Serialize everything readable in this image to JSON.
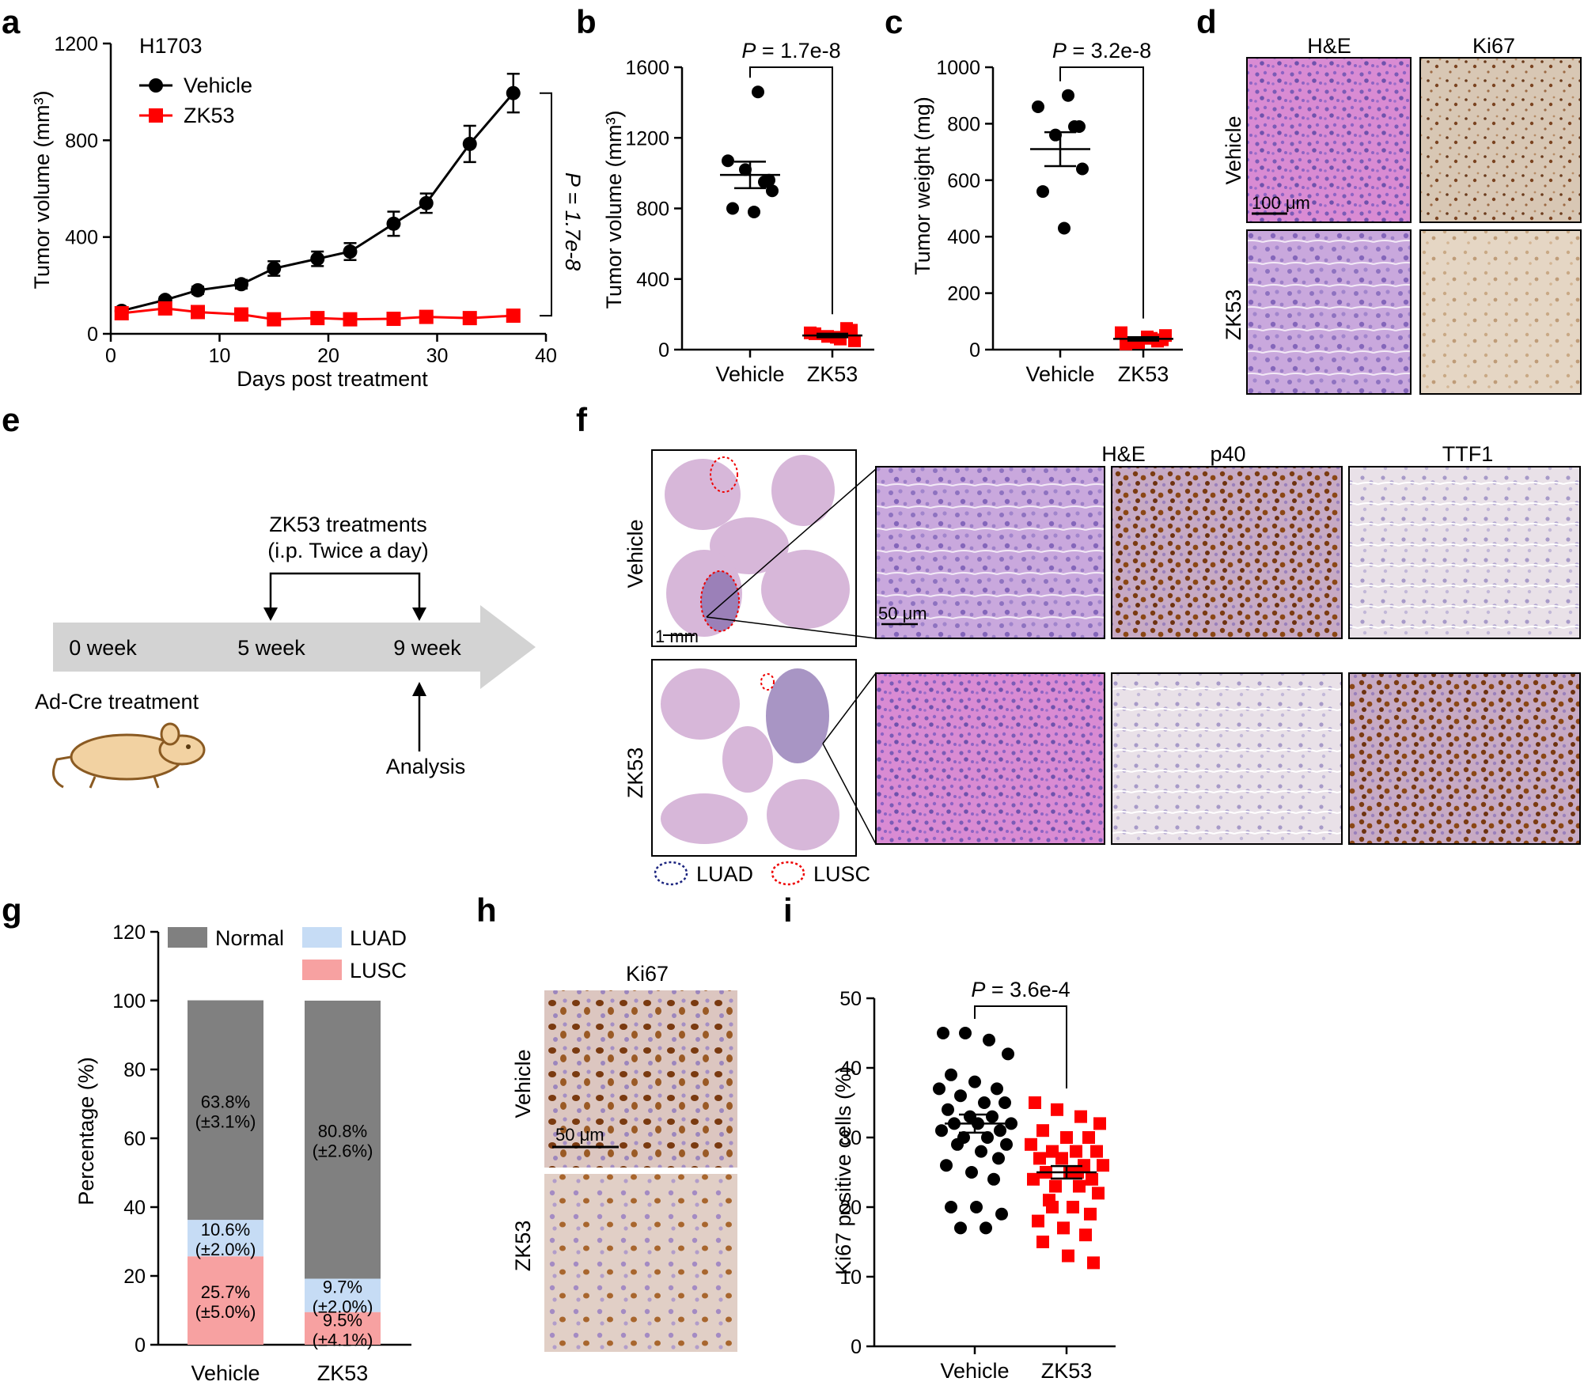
{
  "colors": {
    "vehicle": "#000000",
    "zk53": "#ff0000",
    "normal": "#808080",
    "luad": "#c6dcf5",
    "lusc": "#f7a1a1",
    "he": "#d77ad0",
    "ki67_bg": "#d4c3ad",
    "ki67_dot": "#7a4320",
    "tissue_bg": "#ececec"
  },
  "panel_labels": [
    "a",
    "b",
    "c",
    "d",
    "e",
    "f",
    "g",
    "h",
    "i"
  ],
  "groups": {
    "vehicle": "Vehicle",
    "zk53": "ZK53"
  },
  "stains": {
    "he": "H&E",
    "ki67": "Ki67",
    "p40": "p40",
    "ttf1": "TTF1"
  },
  "scale_bars": {
    "d": "100 μm",
    "f_whole": "1 mm",
    "f_zoom": "50 μm",
    "h": "50 μm"
  },
  "icons": [
    "mouse-icon",
    "timeline-arrow-icon"
  ],
  "schema_e": {
    "weeks": [
      "0 week",
      "5 week",
      "9 week"
    ],
    "treatment_line1": "ZK53 treatments",
    "treatment_line2": "(i.p. Twice a day)",
    "ad_cre": "Ad-Cre treatment",
    "analysis": "Analysis"
  },
  "legend_f": {
    "luad": "LUAD",
    "lusc": "LUSC"
  },
  "chart_data": [
    {
      "id": "a",
      "type": "line",
      "title": "H1703",
      "xlabel": "Days post treatment",
      "ylabel": "Tumor volume (mm³)",
      "xlim": [
        0,
        40
      ],
      "ylim": [
        0,
        1200
      ],
      "xticks": [
        0,
        10,
        20,
        30,
        40
      ],
      "yticks": [
        0,
        400,
        800,
        1200
      ],
      "x": [
        1,
        5,
        8,
        12,
        15,
        19,
        22,
        26,
        29,
        33,
        37
      ],
      "series": [
        {
          "name": "Vehicle",
          "values": [
            95,
            140,
            180,
            205,
            270,
            310,
            340,
            455,
            540,
            785,
            995
          ],
          "errors": [
            8,
            12,
            15,
            18,
            30,
            30,
            35,
            50,
            40,
            75,
            80
          ]
        },
        {
          "name": "ZK53",
          "values": [
            85,
            105,
            90,
            80,
            60,
            65,
            60,
            62,
            70,
            65,
            75
          ],
          "errors": [
            8,
            10,
            10,
            10,
            8,
            8,
            8,
            8,
            8,
            8,
            10
          ]
        }
      ],
      "annotation": "P = 1.7e-8"
    },
    {
      "id": "b",
      "type": "scatter",
      "ylabel": "Tumor volume (mm³)",
      "categories": [
        "Vehicle",
        "ZK53"
      ],
      "ylim": [
        0,
        1600
      ],
      "yticks": [
        0,
        400,
        800,
        1200,
        1600
      ],
      "series": [
        {
          "name": "Vehicle",
          "values": [
            1460,
            1070,
            950,
            1020,
            900,
            800,
            780,
            960
          ],
          "mean": 990,
          "sem": 75
        },
        {
          "name": "ZK53",
          "values": [
            60,
            95,
            120,
            75,
            50,
            90,
            70,
            110
          ],
          "mean": 80,
          "sem": 10
        }
      ],
      "annotation": "P = 1.7e-8"
    },
    {
      "id": "c",
      "type": "scatter",
      "ylabel": "Tumor weight (mg)",
      "categories": [
        "Vehicle",
        "ZK53"
      ],
      "ylim": [
        0,
        1000
      ],
      "yticks": [
        0,
        200,
        400,
        600,
        800,
        1000
      ],
      "series": [
        {
          "name": "Vehicle",
          "values": [
            900,
            860,
            790,
            760,
            640,
            560,
            430,
            790
          ],
          "mean": 710,
          "sem": 60
        },
        {
          "name": "ZK53",
          "values": [
            40,
            60,
            30,
            25,
            50,
            20,
            45,
            35
          ],
          "mean": 38,
          "sem": 6
        }
      ],
      "annotation": "P = 3.2e-8"
    },
    {
      "id": "g",
      "type": "bar",
      "ylabel": "Percentage (%)",
      "categories": [
        "Vehicle",
        "ZK53"
      ],
      "ylim": [
        0,
        120
      ],
      "yticks": [
        0,
        20,
        40,
        60,
        80,
        100,
        120
      ],
      "series": [
        {
          "name": "LUSC",
          "values": [
            25.7,
            9.5
          ],
          "labels": [
            "25.7%",
            "9.5%"
          ],
          "sd": [
            "(±5.0%)",
            "(±4.1%)"
          ]
        },
        {
          "name": "LUAD",
          "values": [
            10.6,
            9.7
          ],
          "labels": [
            "10.6%",
            "9.7%"
          ],
          "sd": [
            "(±2.0%)",
            "(±2.0%)"
          ]
        },
        {
          "name": "Normal",
          "values": [
            63.8,
            80.8
          ],
          "labels": [
            "63.8%",
            "80.8%"
          ],
          "sd": [
            "(±3.1%)",
            "(±2.6%)"
          ]
        }
      ],
      "legend": [
        "Normal",
        "LUAD",
        "LUSC"
      ]
    },
    {
      "id": "i",
      "type": "scatter",
      "ylabel": "Ki67 positive cells (%)",
      "categories": [
        "Vehicle",
        "ZK53"
      ],
      "ylim": [
        0,
        50
      ],
      "yticks": [
        0,
        10,
        20,
        30,
        40,
        50
      ],
      "series": [
        {
          "name": "Vehicle",
          "values": [
            45,
            45,
            44,
            42,
            39,
            38,
            37,
            37,
            36,
            35,
            35,
            34,
            33,
            33,
            32,
            32,
            32,
            31,
            31,
            30,
            30,
            29,
            29,
            28,
            27,
            26,
            25,
            24,
            20,
            20,
            19,
            17,
            17
          ],
          "mean": 32,
          "sem": 1.3
        },
        {
          "name": "ZK53",
          "values": [
            35,
            34,
            33,
            32,
            31,
            30,
            30,
            29,
            28,
            28,
            28,
            27,
            27,
            26,
            26,
            25,
            25,
            24,
            24,
            23,
            23,
            22,
            21,
            20,
            19,
            18,
            17,
            16,
            15,
            13,
            12,
            20,
            25
          ],
          "mean": 25,
          "sem": 0.9
        }
      ],
      "annotation": "P = 3.6e-4"
    }
  ]
}
